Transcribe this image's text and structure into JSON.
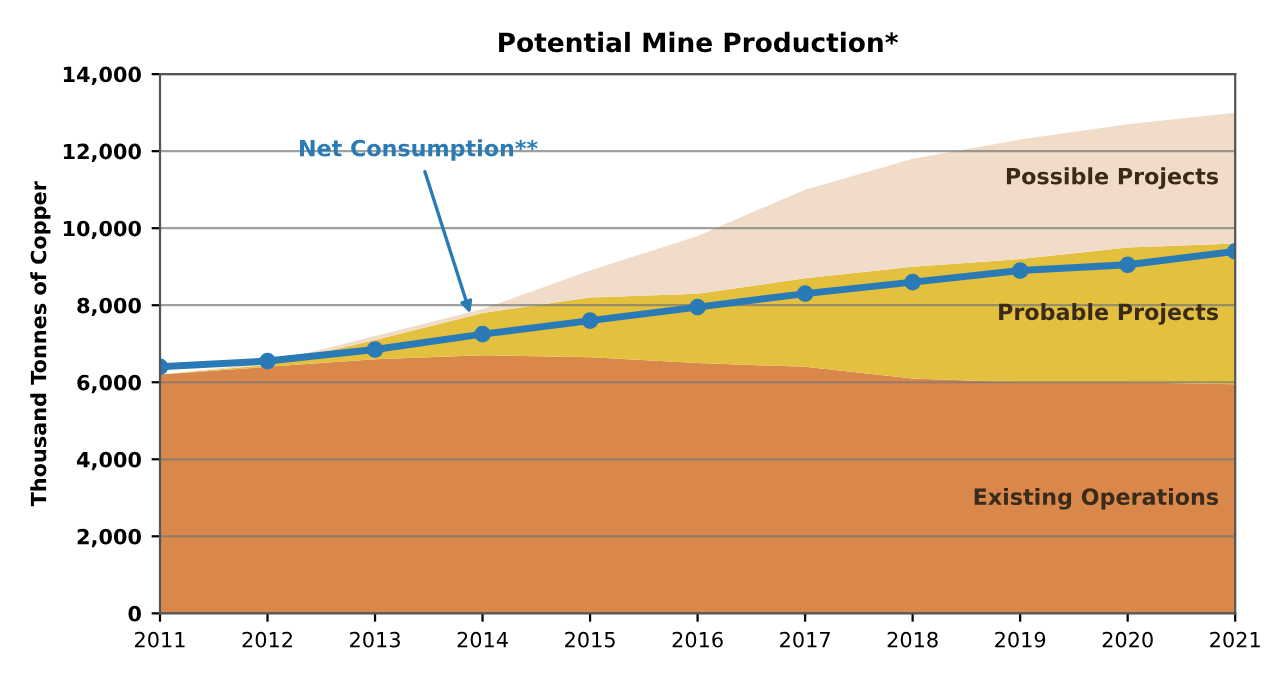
{
  "chart_data": {
    "type": "area",
    "stacked": true,
    "title": "Potential Mine Production*",
    "ylabel": "Thousand Tonnes of Copper",
    "x": [
      2011,
      2012,
      2013,
      2014,
      2015,
      2016,
      2017,
      2018,
      2019,
      2020,
      2021
    ],
    "series": [
      {
        "name": "Existing Operations",
        "color": "#d9874a",
        "values": [
          6200,
          6400,
          6600,
          6700,
          6650,
          6500,
          6400,
          6100,
          6000,
          6000,
          5950
        ]
      },
      {
        "name": "Probable Projects",
        "color": "#e3c13e",
        "values": [
          0,
          50,
          500,
          1100,
          1550,
          1800,
          2300,
          2900,
          3200,
          3500,
          3650
        ]
      },
      {
        "name": "Possible Projects",
        "color": "#f0dcc8",
        "values": [
          0,
          50,
          100,
          100,
          700,
          1500,
          2300,
          2800,
          3100,
          3200,
          3400
        ]
      },
      {
        "name": "Net Consumption**",
        "type": "line",
        "color": "#2a7ab5",
        "marker": "circle",
        "values": [
          6400,
          6550,
          6850,
          7250,
          7600,
          7950,
          8300,
          8600,
          8900,
          9050,
          9400
        ]
      }
    ],
    "xlim": [
      2011,
      2021
    ],
    "xticks": [
      2011,
      2012,
      2013,
      2014,
      2015,
      2016,
      2017,
      2018,
      2019,
      2020,
      2021
    ],
    "ylim": [
      0,
      14000
    ],
    "yticks": [
      0,
      {
        "value": 2000,
        "label": "2,000"
      },
      {
        "value": 4000,
        "label": "4,000"
      },
      {
        "value": 6000,
        "label": "6,000"
      },
      {
        "value": 8000,
        "label": "8,000"
      },
      {
        "value": 10000,
        "label": "10,000"
      },
      {
        "value": 12000,
        "label": "12,000"
      },
      {
        "value": 14000,
        "label": "14,000"
      }
    ],
    "grid": "y"
  }
}
